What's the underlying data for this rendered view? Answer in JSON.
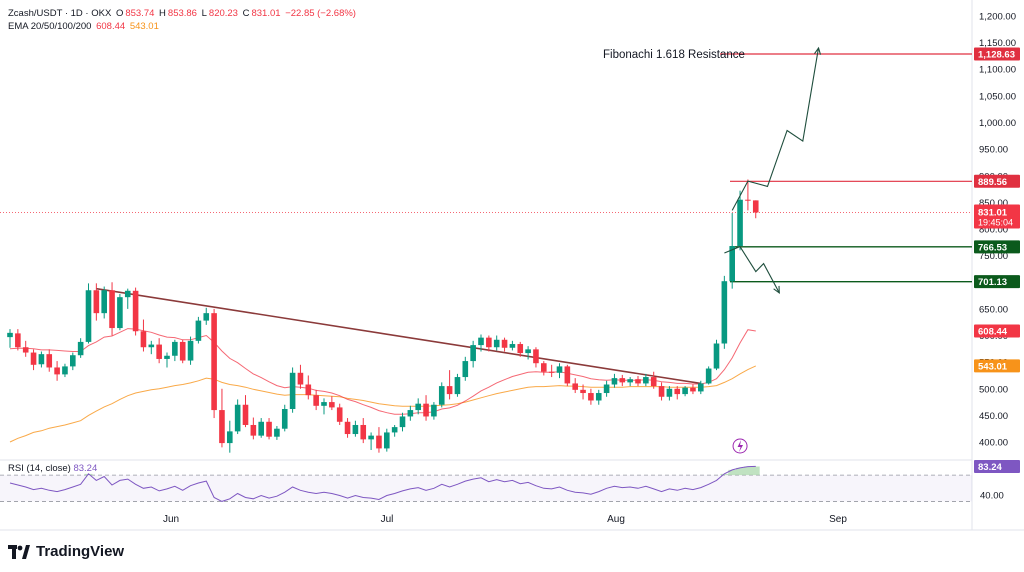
{
  "header": {
    "symbol": "Zcash/USDT · 1D · OKX",
    "open_label": "O",
    "open": "853.74",
    "high_label": "H",
    "high": "853.86",
    "low_label": "L",
    "low": "820.23",
    "close_label": "C",
    "close": "831.01",
    "change": "−22.85 (−2.68%)",
    "ema_label": "EMA 20/50/100/200",
    "ema_fast": "608.44",
    "ema_slow": "543.01"
  },
  "rsi": {
    "label": "RSI (14, close)",
    "value": "83.24",
    "scale_label": "40.00"
  },
  "annotation": {
    "fib_text": "Fibonachi 1.618 Resistance"
  },
  "price_tags": {
    "fib": "1,128.63",
    "res": "889.56",
    "last": "831.01",
    "countdown": "19:45:04",
    "sup1": "766.53",
    "sup2": "701.13",
    "ema_fast": "608.44",
    "ema_slow": "543.01"
  },
  "brand": {
    "name": "TradingView"
  },
  "colors": {
    "up": "#089981",
    "down": "#f23645",
    "ema_fast": "#f23645",
    "ema_slow": "#f7931a",
    "trendline": "#8b3a3a",
    "support": "#0b5a1c",
    "resistance": "#e03040",
    "rsi_line": "#7e57c2",
    "rsi_fill": "#a5d6a7"
  },
  "chart_data": {
    "type": "candlestick",
    "title": "Zcash/USDT · 1D · OKX",
    "x_labels": [
      "Jun",
      "Jul",
      "Aug",
      "Sep"
    ],
    "y_ticks": [
      400,
      450,
      500,
      550,
      600,
      650,
      700,
      750,
      800,
      850,
      900,
      950,
      1000,
      1050,
      1100,
      1150,
      1200
    ],
    "ylim": [
      370,
      1215
    ],
    "horizontal_levels": [
      {
        "name": "Fibonachi 1.618 Resistance",
        "value": 1128.63
      },
      {
        "value": 889.56
      },
      {
        "value": 766.53
      },
      {
        "value": 701.13
      }
    ],
    "ohlc": [
      [
        597,
        612,
        577,
        605
      ],
      [
        604,
        612,
        572,
        578
      ],
      [
        578,
        590,
        560,
        568
      ],
      [
        568,
        574,
        535,
        545
      ],
      [
        546,
        570,
        540,
        565
      ],
      [
        565,
        574,
        532,
        540
      ],
      [
        540,
        552,
        515,
        527
      ],
      [
        527,
        547,
        522,
        542
      ],
      [
        542,
        568,
        535,
        563
      ],
      [
        563,
        595,
        558,
        588
      ],
      [
        588,
        698,
        585,
        685
      ],
      [
        685,
        698,
        628,
        642
      ],
      [
        642,
        692,
        632,
        685
      ],
      [
        685,
        700,
        600,
        614
      ],
      [
        614,
        678,
        610,
        672
      ],
      [
        672,
        688,
        650,
        684
      ],
      [
        684,
        690,
        600,
        608
      ],
      [
        608,
        630,
        570,
        578
      ],
      [
        578,
        590,
        565,
        583
      ],
      [
        583,
        595,
        548,
        556
      ],
      [
        556,
        568,
        540,
        562
      ],
      [
        562,
        592,
        552,
        588
      ],
      [
        588,
        592,
        548,
        553
      ],
      [
        553,
        598,
        545,
        590
      ],
      [
        590,
        635,
        585,
        628
      ],
      [
        628,
        652,
        620,
        642
      ],
      [
        642,
        650,
        445,
        460
      ],
      [
        460,
        500,
        390,
        398
      ],
      [
        398,
        440,
        380,
        420
      ],
      [
        420,
        480,
        415,
        470
      ],
      [
        470,
        488,
        428,
        432
      ],
      [
        432,
        446,
        405,
        412
      ],
      [
        412,
        445,
        408,
        438
      ],
      [
        438,
        445,
        405,
        410
      ],
      [
        410,
        430,
        404,
        425
      ],
      [
        425,
        470,
        420,
        462
      ],
      [
        462,
        540,
        455,
        530
      ],
      [
        530,
        545,
        500,
        508
      ],
      [
        508,
        525,
        480,
        488
      ],
      [
        488,
        498,
        460,
        468
      ],
      [
        468,
        482,
        452,
        475
      ],
      [
        475,
        486,
        460,
        465
      ],
      [
        465,
        472,
        432,
        438
      ],
      [
        438,
        445,
        408,
        415
      ],
      [
        415,
        440,
        410,
        432
      ],
      [
        432,
        445,
        398,
        405
      ],
      [
        405,
        418,
        385,
        412
      ],
      [
        412,
        428,
        380,
        388
      ],
      [
        388,
        425,
        382,
        418
      ],
      [
        418,
        432,
        410,
        428
      ],
      [
        428,
        455,
        420,
        448
      ],
      [
        448,
        468,
        440,
        460
      ],
      [
        460,
        482,
        452,
        472
      ],
      [
        472,
        488,
        440,
        448
      ],
      [
        448,
        475,
        442,
        470
      ],
      [
        470,
        512,
        465,
        505
      ],
      [
        505,
        535,
        480,
        490
      ],
      [
        490,
        528,
        485,
        522
      ],
      [
        522,
        560,
        515,
        552
      ],
      [
        552,
        590,
        540,
        582
      ],
      [
        582,
        602,
        570,
        596
      ],
      [
        596,
        600,
        570,
        578
      ],
      [
        578,
        600,
        572,
        592
      ],
      [
        592,
        596,
        570,
        577
      ],
      [
        577,
        590,
        572,
        584
      ],
      [
        584,
        588,
        560,
        567
      ],
      [
        567,
        580,
        555,
        574
      ],
      [
        574,
        578,
        540,
        548
      ],
      [
        548,
        552,
        525,
        532
      ],
      [
        532,
        545,
        522,
        530
      ],
      [
        530,
        548,
        520,
        542
      ],
      [
        542,
        545,
        505,
        510
      ],
      [
        510,
        520,
        492,
        498
      ],
      [
        498,
        508,
        480,
        492
      ],
      [
        492,
        500,
        470,
        478
      ],
      [
        478,
        498,
        470,
        492
      ],
      [
        492,
        515,
        485,
        508
      ],
      [
        508,
        528,
        502,
        520
      ],
      [
        520,
        526,
        505,
        512
      ],
      [
        512,
        522,
        505,
        518
      ],
      [
        518,
        524,
        505,
        510
      ],
      [
        510,
        528,
        505,
        522
      ],
      [
        522,
        532,
        500,
        505
      ],
      [
        505,
        512,
        478,
        485
      ],
      [
        485,
        505,
        478,
        500
      ],
      [
        500,
        505,
        480,
        490
      ],
      [
        490,
        505,
        486,
        502
      ],
      [
        502,
        508,
        490,
        495
      ],
      [
        495,
        515,
        490,
        510
      ],
      [
        510,
        542,
        508,
        538
      ],
      [
        538,
        592,
        535,
        585
      ],
      [
        585,
        712,
        575,
        702
      ],
      [
        702,
        830,
        688,
        768
      ],
      [
        768,
        872,
        760,
        855
      ],
      [
        855,
        893,
        835,
        854
      ],
      [
        853.74,
        853.86,
        820.23,
        831.01
      ]
    ],
    "ema_fast_series": [
      575,
      576,
      576,
      575,
      573,
      573,
      572,
      571,
      570,
      570,
      581,
      588,
      597,
      599,
      606,
      613,
      612,
      609,
      606,
      601,
      597,
      596,
      592,
      592,
      596,
      600,
      587,
      571,
      557,
      549,
      538,
      528,
      521,
      513,
      506,
      502,
      504,
      503,
      501,
      497,
      495,
      492,
      487,
      480,
      476,
      470,
      465,
      459,
      455,
      452,
      452,
      453,
      455,
      455,
      457,
      462,
      464,
      469,
      477,
      486,
      496,
      503,
      511,
      517,
      523,
      527,
      531,
      532,
      531,
      531,
      532,
      529,
      526,
      523,
      519,
      517,
      516,
      517,
      516,
      516,
      516,
      517,
      516,
      513,
      512,
      510,
      510,
      509,
      509,
      512,
      519,
      536,
      558,
      586,
      611,
      608.44
    ],
    "ema_slow_series": [
      400,
      407,
      412,
      418,
      421,
      426,
      429,
      432,
      436,
      440,
      450,
      458,
      466,
      472,
      480,
      487,
      492,
      495,
      498,
      500,
      503,
      506,
      508,
      511,
      515,
      520,
      518,
      512,
      508,
      506,
      503,
      499,
      496,
      493,
      490,
      488,
      489,
      489,
      489,
      488,
      487,
      486,
      485,
      482,
      480,
      478,
      475,
      472,
      470,
      468,
      467,
      467,
      467,
      467,
      468,
      469,
      470,
      472,
      475,
      479,
      483,
      487,
      491,
      494,
      497,
      500,
      503,
      504,
      504,
      505,
      506,
      505,
      505,
      504,
      503,
      503,
      503,
      503,
      503,
      504,
      504,
      504,
      504,
      504,
      503,
      503,
      503,
      503,
      503,
      504,
      506,
      512,
      519,
      528,
      536,
      543.01
    ],
    "trendline": [
      [
        11,
        688
      ],
      [
        88,
        510
      ]
    ],
    "rsi_series": [
      58,
      55,
      52,
      48,
      50,
      47,
      45,
      48,
      52,
      56,
      72,
      62,
      68,
      55,
      62,
      64,
      56,
      50,
      52,
      46,
      49,
      53,
      47,
      54,
      58,
      61,
      36,
      30,
      34,
      42,
      36,
      34,
      39,
      35,
      38,
      44,
      52,
      47,
      44,
      42,
      44,
      42,
      39,
      35,
      39,
      36,
      35,
      33,
      39,
      42,
      46,
      49,
      51,
      47,
      50,
      56,
      52,
      56,
      61,
      64,
      66,
      60,
      63,
      60,
      62,
      57,
      59,
      54,
      50,
      49,
      52,
      47,
      44,
      43,
      41,
      45,
      50,
      53,
      51,
      52,
      50,
      53,
      49,
      45,
      49,
      47,
      50,
      48,
      51,
      56,
      62,
      72,
      78,
      81,
      83,
      83.24
    ],
    "rsi_range": [
      20,
      90
    ],
    "rsi_bands": [
      30,
      70
    ],
    "projection_up": [
      [
        92,
        835
      ],
      [
        94,
        890
      ],
      [
        96.5,
        880
      ],
      [
        99,
        985
      ],
      [
        101,
        965
      ],
      [
        103,
        1140
      ]
    ],
    "projection_down": [
      [
        91,
        755
      ],
      [
        93,
        767
      ],
      [
        95,
        720
      ],
      [
        96,
        735
      ],
      [
        98,
        680
      ]
    ]
  }
}
